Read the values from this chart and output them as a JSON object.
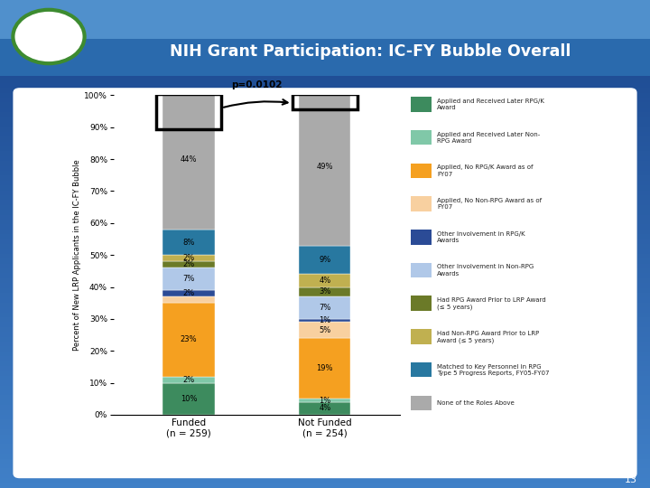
{
  "title": "NIH Grant Participation: IC-FY Bubble Overall",
  "ylabel": "Percent of New LRP Applicants in the IC-FY Bubble",
  "categories": [
    "Funded\n(n = 259)",
    "Not Funded\n(n = 254)"
  ],
  "legend_labels": [
    "Applied and Received Later RPG/K\nAward",
    "Applied and Received Later Non-\nRPG Award",
    "Applied, No RPG/K Award as of\nFY07",
    "Applied, No Non-RPG Award as of\nFY07",
    "Other Involvement in RPG/K\nAwards",
    "Other Involvement in Non-RPG\nAwards",
    "Had RPG Award Prior to LRP Award\n(≤ 5 years)",
    "Had Non-RPG Award Prior to LRP\nAward (≤ 5 years)",
    "Matched to Key Personnel in RPG\nType 5 Progress Reports, FY05-FY07",
    "None of the Roles Above"
  ],
  "colors": [
    "#3d8b5e",
    "#80c8a8",
    "#f5a020",
    "#f8d0a0",
    "#2b4b96",
    "#b0c8e8",
    "#6b7a28",
    "#c0b050",
    "#2878a0",
    "#aaaaaa"
  ],
  "funded_pcts": [
    10,
    2,
    23,
    2,
    2,
    7,
    2,
    2,
    8,
    44
  ],
  "not_funded_pcts": [
    4,
    1,
    19,
    5,
    1,
    7,
    3,
    4,
    9,
    49
  ],
  "funded_labels": [
    "10%",
    "2%",
    "23%",
    "",
    "2%",
    "7%",
    "2%",
    "2%",
    "8%",
    "44%"
  ],
  "not_funded_labels": [
    "4%",
    "1%",
    "19%",
    "5%",
    "1%",
    "7%",
    "3%",
    "4%",
    "9%",
    "49%"
  ],
  "pvalue_text": "p=0.0102",
  "header_bg": "#2060a0",
  "slide_bg_top": "#4488cc",
  "slide_bg_bot": "#1a4488",
  "chart_bg": "#ffffff",
  "page_number": "13"
}
